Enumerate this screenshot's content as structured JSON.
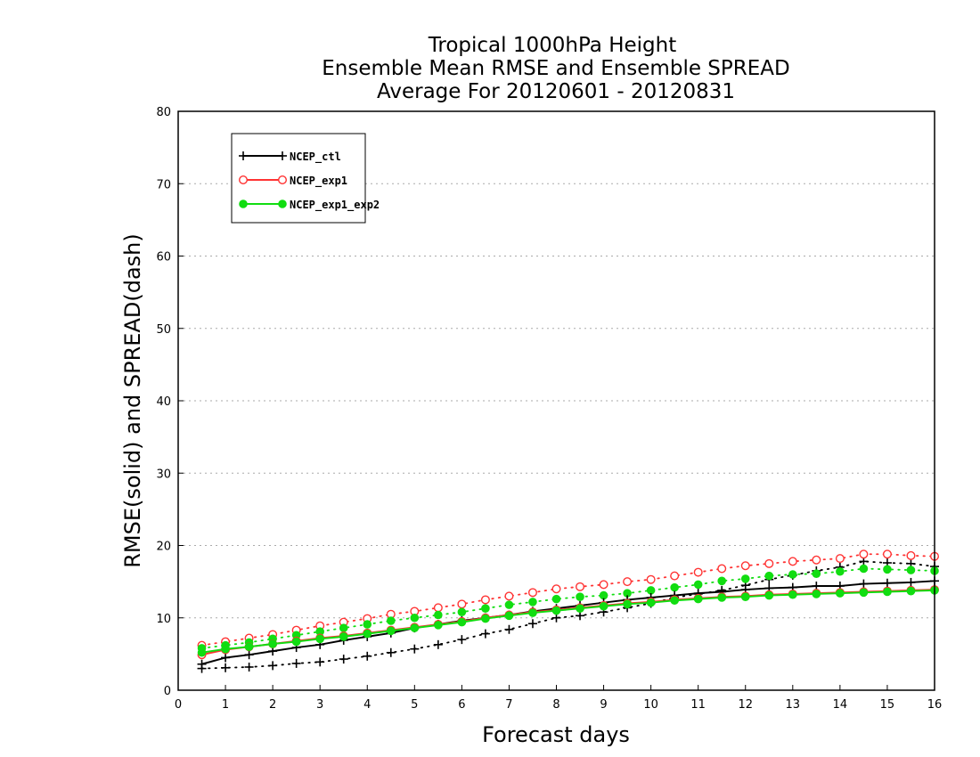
{
  "chart_data": {
    "type": "line",
    "title": [
      "Tropical 1000hPa Height",
      "Ensemble Mean RMSE and Ensemble SPREAD",
      "Average For 20120601 - 20120831"
    ],
    "xlabel": "Forecast days",
    "ylabel": "RMSE(solid) and SPREAD(dash)",
    "xlim": [
      0,
      16
    ],
    "ylim": [
      0,
      80
    ],
    "xticks": [
      "0",
      "1",
      "2",
      "3",
      "4",
      "5",
      "6",
      "7",
      "8",
      "9",
      "10",
      "11",
      "12",
      "13",
      "14",
      "15",
      "16"
    ],
    "yticks": [
      "0",
      "10",
      "20",
      "30",
      "40",
      "50",
      "60",
      "70",
      "80"
    ],
    "grid": "horizontal dotted",
    "legend_position": "top-left",
    "x": [
      0.5,
      1,
      1.5,
      2,
      2.5,
      3,
      3.5,
      4,
      4.5,
      5,
      5.5,
      6,
      6.5,
      7,
      7.5,
      8,
      8.5,
      9,
      9.5,
      10,
      10.5,
      11,
      11.5,
      12,
      12.5,
      13,
      13.5,
      14,
      14.5,
      15,
      15.5,
      16
    ],
    "series": [
      {
        "name": "NCEP_ctl",
        "color": "#000000",
        "marker": "plus",
        "rmse": [
          3.6,
          4.5,
          4.9,
          5.4,
          5.9,
          6.3,
          6.9,
          7.4,
          7.9,
          8.6,
          9.1,
          9.6,
          10.0,
          10.4,
          10.9,
          11.3,
          11.7,
          12.1,
          12.5,
          12.8,
          13.1,
          13.4,
          13.6,
          13.9,
          14.1,
          14.2,
          14.4,
          14.4,
          14.7,
          14.8,
          14.9,
          15.1
        ],
        "spread": [
          3.0,
          3.1,
          3.2,
          3.4,
          3.7,
          3.9,
          4.3,
          4.7,
          5.2,
          5.7,
          6.3,
          7.0,
          7.8,
          8.4,
          9.2,
          10.0,
          10.3,
          10.8,
          11.4,
          12.0,
          12.8,
          13.3,
          13.8,
          14.5,
          15.3,
          15.9,
          16.5,
          17.0,
          17.8,
          17.6,
          17.5,
          17.1
        ]
      },
      {
        "name": "NCEP_exp1",
        "color": "#ff3333",
        "marker": "open-circle",
        "rmse": [
          4.9,
          5.6,
          6.0,
          6.4,
          6.8,
          7.2,
          7.5,
          7.9,
          8.3,
          8.7,
          9.1,
          9.5,
          10.0,
          10.4,
          10.8,
          11.1,
          11.4,
          11.7,
          12.0,
          12.2,
          12.5,
          12.7,
          12.9,
          13.0,
          13.2,
          13.3,
          13.4,
          13.5,
          13.6,
          13.7,
          13.8,
          13.9
        ],
        "spread": [
          6.2,
          6.7,
          7.2,
          7.7,
          8.3,
          8.9,
          9.4,
          9.9,
          10.5,
          10.9,
          11.4,
          11.9,
          12.5,
          13.0,
          13.5,
          14.0,
          14.3,
          14.6,
          15.0,
          15.3,
          15.8,
          16.3,
          16.8,
          17.2,
          17.5,
          17.8,
          18.0,
          18.2,
          18.8,
          18.8,
          18.6,
          18.5
        ]
      },
      {
        "name": "NCEP_exp1_exp2",
        "color": "#11dd11",
        "marker": "filled-circle",
        "rmse": [
          5.2,
          5.7,
          6.0,
          6.4,
          6.7,
          7.1,
          7.4,
          7.8,
          8.2,
          8.6,
          9.0,
          9.4,
          9.9,
          10.3,
          10.7,
          11.0,
          11.3,
          11.6,
          11.9,
          12.1,
          12.4,
          12.6,
          12.8,
          12.9,
          13.1,
          13.2,
          13.3,
          13.4,
          13.5,
          13.6,
          13.7,
          13.8
        ],
        "spread": [
          5.8,
          6.2,
          6.6,
          7.1,
          7.6,
          8.1,
          8.6,
          9.1,
          9.6,
          10.0,
          10.4,
          10.8,
          11.3,
          11.8,
          12.2,
          12.6,
          12.9,
          13.1,
          13.4,
          13.8,
          14.2,
          14.6,
          15.1,
          15.4,
          15.8,
          16.0,
          16.1,
          16.4,
          16.8,
          16.7,
          16.6,
          16.5
        ]
      }
    ]
  }
}
